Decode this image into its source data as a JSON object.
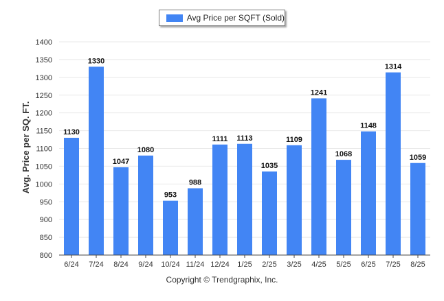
{
  "legend": {
    "label": "Avg Price per SQFT (Sold)"
  },
  "footer": {
    "copyright": "Copyright © Trendgraphix, Inc."
  },
  "colors": {
    "bar": "#4285f4",
    "grid": "#e8e8e8",
    "axis": "#444444"
  },
  "chart_data": {
    "type": "bar",
    "title": "",
    "xlabel": "",
    "ylabel": "Avg. Price per SQ. FT.",
    "categories": [
      "6/24",
      "7/24",
      "8/24",
      "9/24",
      "10/24",
      "11/24",
      "12/24",
      "1/25",
      "2/25",
      "3/25",
      "4/25",
      "5/25",
      "6/25",
      "7/25",
      "8/25"
    ],
    "series": [
      {
        "name": "Avg Price per SQFT (Sold)",
        "values": [
          1130,
          1330,
          1047,
          1080,
          953,
          988,
          1111,
          1113,
          1035,
          1109,
          1241,
          1068,
          1148,
          1314,
          1059
        ]
      }
    ],
    "ylim": [
      800,
      1400
    ],
    "yticks": [
      800,
      850,
      900,
      950,
      1000,
      1050,
      1100,
      1150,
      1200,
      1250,
      1300,
      1350,
      1400
    ],
    "grid": true,
    "legend_position": "top-center",
    "data_labels": true
  }
}
